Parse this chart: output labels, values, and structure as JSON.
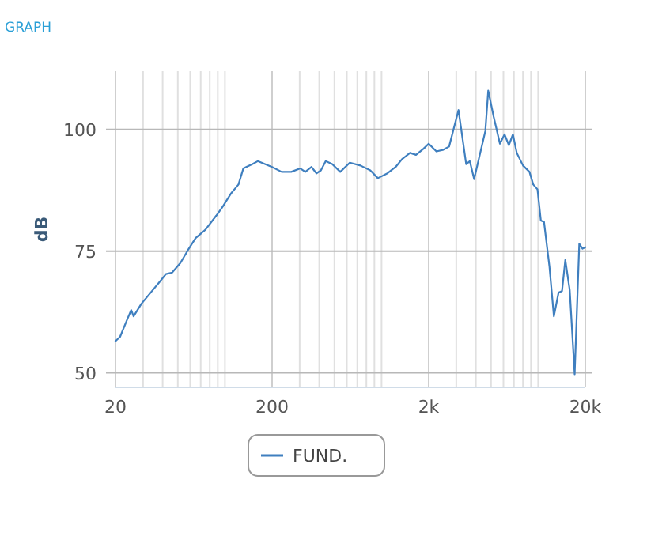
{
  "chart_data": {
    "type": "line",
    "title": "GRAPH",
    "ylabel": "dB",
    "log": "x",
    "grid": true,
    "legend": "bottom",
    "xlim": [
      20,
      20000
    ],
    "ylim": [
      47,
      112
    ],
    "xticks": [
      20,
      {
        "value": 30,
        "label": null
      },
      {
        "value": 40,
        "label": null
      },
      {
        "value": 50,
        "label": null
      },
      {
        "value": 60,
        "label": null
      },
      {
        "value": 70,
        "label": null
      },
      {
        "value": 80,
        "label": null
      },
      {
        "value": 90,
        "label": null
      },
      {
        "value": 100,
        "label": null
      },
      200,
      {
        "value": 300,
        "label": null
      },
      {
        "value": 400,
        "label": null
      },
      {
        "value": 500,
        "label": null
      },
      {
        "value": 600,
        "label": null
      },
      {
        "value": 700,
        "label": null
      },
      {
        "value": 800,
        "label": null
      },
      {
        "value": 900,
        "label": null
      },
      {
        "value": 1000,
        "label": null
      },
      {
        "value": 2000,
        "label": "2k"
      },
      {
        "value": 3000,
        "label": null
      },
      {
        "value": 4000,
        "label": null
      },
      {
        "value": 5000,
        "label": null
      },
      {
        "value": 6000,
        "label": null
      },
      {
        "value": 7000,
        "label": null
      },
      {
        "value": 8000,
        "label": null
      },
      {
        "value": 9000,
        "label": null
      },
      {
        "value": 10000,
        "label": null
      },
      {
        "value": 20000,
        "label": "20k"
      }
    ],
    "yticks": [
      50,
      75,
      100
    ],
    "series": [
      {
        "name": "FUND.",
        "color": "#3f7fbf",
        "x": [
          20,
          21.4,
          23.5,
          25.2,
          26.1,
          29.3,
          34.2,
          38.3,
          42,
          46,
          52,
          58,
          65,
          75,
          88,
          97,
          109,
          122,
          131,
          150,
          162,
          200,
          230,
          265,
          303,
          326,
          357,
          384,
          410,
          440,
          484,
          545,
          627,
          733,
          848,
          947,
          1090,
          1230,
          1350,
          1520,
          1660,
          1860,
          2000,
          2240,
          2460,
          2700,
          3100,
          3470,
          3660,
          3900,
          4600,
          4800,
          5200,
          5700,
          6100,
          6500,
          6900,
          7300,
          8000,
          8800,
          9300,
          9900,
          10400,
          10900,
          11800,
          12600,
          13500,
          14200,
          14900,
          15900,
          17100,
          18300,
          19200,
          20000
        ],
        "values": [
          56.5,
          57.4,
          60.6,
          62.9,
          61.6,
          64.2,
          66.8,
          68.7,
          70.3,
          70.6,
          72.6,
          75.2,
          77.7,
          79.4,
          82.3,
          84.2,
          86.8,
          88.7,
          92,
          92.9,
          93.5,
          92.3,
          91.3,
          91.3,
          92,
          91.3,
          92.3,
          91,
          91.6,
          93.5,
          92.9,
          91.3,
          93.2,
          92.6,
          91.6,
          90,
          91,
          92.3,
          93.9,
          95.2,
          94.8,
          96.1,
          97.1,
          95.5,
          95.8,
          96.5,
          104,
          92.9,
          93.5,
          89.8,
          99.7,
          108,
          102.6,
          97.1,
          99,
          96.8,
          99,
          95.2,
          92.6,
          91.3,
          88.7,
          87.7,
          81.3,
          81,
          71.9,
          61.6,
          66.5,
          66.8,
          73.2,
          67,
          49.7,
          76.5,
          75.5,
          75.8
        ]
      }
    ]
  }
}
